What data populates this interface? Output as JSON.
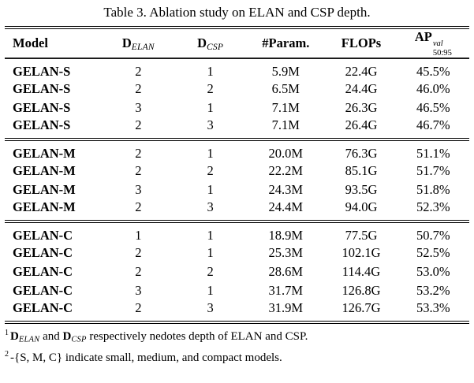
{
  "caption": "Table 3. Ablation study on ELAN and CSP depth.",
  "table": {
    "column_keys": [
      "model",
      "d_elan",
      "d_csp",
      "params",
      "flops",
      "ap"
    ],
    "header": {
      "model": "Model",
      "d_elan": {
        "base": "D",
        "sub": "ELAN"
      },
      "d_csp": {
        "base": "D",
        "sub": "CSP"
      },
      "params": "#Param.",
      "flops": "FLOPs",
      "ap": {
        "base": "AP",
        "sup": "val",
        "sub": "50:95"
      }
    },
    "sections": [
      {
        "name": "GELAN-S",
        "rows": [
          {
            "model": "GELAN-S",
            "d_elan": "2",
            "d_csp": "1",
            "params": "5.9M",
            "flops": "22.4G",
            "ap": "45.5%"
          },
          {
            "model": "GELAN-S",
            "d_elan": "2",
            "d_csp": "2",
            "params": "6.5M",
            "flops": "24.4G",
            "ap": "46.0%"
          },
          {
            "model": "GELAN-S",
            "d_elan": "3",
            "d_csp": "1",
            "params": "7.1M",
            "flops": "26.3G",
            "ap": "46.5%"
          },
          {
            "model": "GELAN-S",
            "d_elan": "2",
            "d_csp": "3",
            "params": "7.1M",
            "flops": "26.4G",
            "ap": "46.7%"
          }
        ]
      },
      {
        "name": "GELAN-M",
        "rows": [
          {
            "model": "GELAN-M",
            "d_elan": "2",
            "d_csp": "1",
            "params": "20.0M",
            "flops": "76.3G",
            "ap": "51.1%"
          },
          {
            "model": "GELAN-M",
            "d_elan": "2",
            "d_csp": "2",
            "params": "22.2M",
            "flops": "85.1G",
            "ap": "51.7%"
          },
          {
            "model": "GELAN-M",
            "d_elan": "3",
            "d_csp": "1",
            "params": "24.3M",
            "flops": "93.5G",
            "ap": "51.8%"
          },
          {
            "model": "GELAN-M",
            "d_elan": "2",
            "d_csp": "3",
            "params": "24.4M",
            "flops": "94.0G",
            "ap": "52.3%"
          }
        ]
      },
      {
        "name": "GELAN-C",
        "rows": [
          {
            "model": "GELAN-C",
            "d_elan": "1",
            "d_csp": "1",
            "params": "18.9M",
            "flops": "77.5G",
            "ap": "50.7%"
          },
          {
            "model": "GELAN-C",
            "d_elan": "2",
            "d_csp": "1",
            "params": "25.3M",
            "flops": "102.1G",
            "ap": "52.5%"
          },
          {
            "model": "GELAN-C",
            "d_elan": "2",
            "d_csp": "2",
            "params": "28.6M",
            "flops": "114.4G",
            "ap": "53.0%"
          },
          {
            "model": "GELAN-C",
            "d_elan": "3",
            "d_csp": "1",
            "params": "31.7M",
            "flops": "126.8G",
            "ap": "53.2%"
          },
          {
            "model": "GELAN-C",
            "d_elan": "2",
            "d_csp": "3",
            "params": "31.9M",
            "flops": "126.7G",
            "ap": "53.3%"
          }
        ]
      }
    ]
  },
  "footnotes": {
    "fn1": {
      "marker": "1",
      "d1_base": "D",
      "d1_sub": "ELAN",
      "mid": "and",
      "d2_base": "D",
      "d2_sub": "CSP",
      "rest": "respectively nedotes depth of ELAN and CSP."
    },
    "fn2": {
      "marker": "2",
      "text": "-{S, M, C} indicate small, medium, and compact models."
    }
  }
}
